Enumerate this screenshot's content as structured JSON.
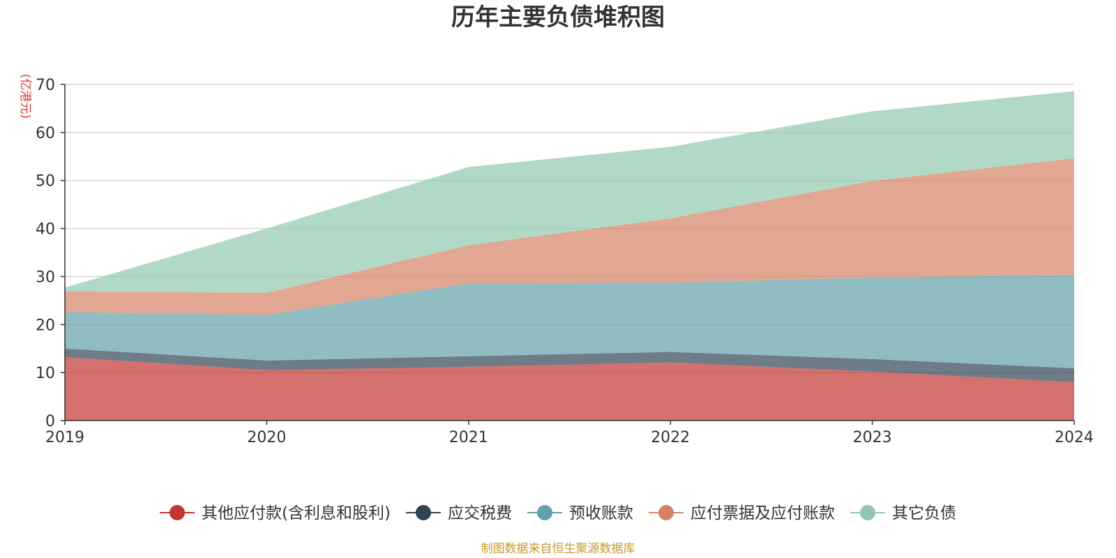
{
  "chart_data": {
    "type": "area",
    "stacked": true,
    "title": "历年主要负债堆积图",
    "unit_label": "(亿港元)",
    "x": [
      "2019",
      "2020",
      "2021",
      "2022",
      "2023",
      "2024"
    ],
    "ylim": [
      0,
      70
    ],
    "yticks": [
      "0",
      "10",
      "20",
      "30",
      "40",
      "50",
      "60",
      "70"
    ],
    "grid": true,
    "legend_position": "bottom",
    "series": [
      {
        "name": "其他应付款(含利息和股利)",
        "color": "#c23531",
        "values": [
          13.2,
          10.5,
          11.2,
          12.1,
          10.2,
          8.0
        ]
      },
      {
        "name": "应交税费",
        "color": "#2f4554",
        "values": [
          1.8,
          2.0,
          2.2,
          2.2,
          2.6,
          2.9
        ]
      },
      {
        "name": "预收账款",
        "color": "#61a0a8",
        "values": [
          7.6,
          9.5,
          15.2,
          14.4,
          17.0,
          19.4
        ]
      },
      {
        "name": "应付票据及应付账款",
        "color": "#d48265",
        "values": [
          4.3,
          4.6,
          7.9,
          13.4,
          20.1,
          24.3
        ]
      },
      {
        "name": "其它负债",
        "color": "#91c7ae",
        "values": [
          0.8,
          13.4,
          16.3,
          14.9,
          14.5,
          14.0
        ]
      }
    ]
  },
  "footer": "制图数据来自恒生聚源数据库"
}
